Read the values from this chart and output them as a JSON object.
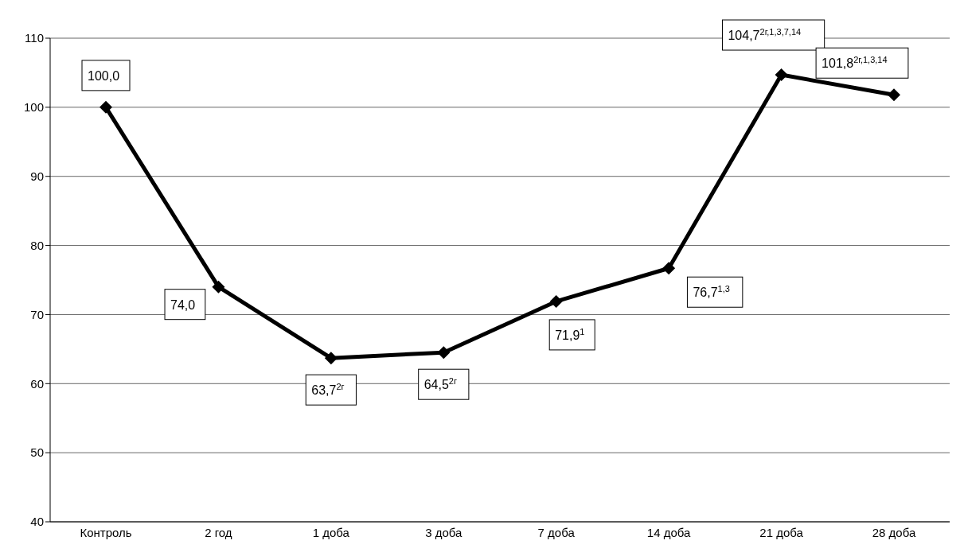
{
  "chart_data": {
    "type": "line",
    "categories": [
      "Контроль",
      "2 год",
      "1 доба",
      "3 доба",
      "7 доба",
      "14 доба",
      "21 доба",
      "28 доба"
    ],
    "series": [
      {
        "color": "#000000",
        "values": [
          100.0,
          74.0,
          63.7,
          64.5,
          71.9,
          76.7,
          104.7,
          101.8
        ],
        "value_labels": [
          "100,0",
          "74,0",
          "63,7$^{2г}$",
          "64,5$^{2г}$",
          "71,9$^{1}$",
          "76,7$^{1,3}$",
          "104,7$^{2г,1,3,7,14}$",
          "101,8$^{2г,1,3,14}$"
        ]
      }
    ],
    "ylim": [
      40,
      110
    ],
    "yticks": [
      40,
      50,
      60,
      70,
      80,
      90,
      100,
      110
    ],
    "grid": "y",
    "marker": "diamond",
    "line_style": "solid"
  }
}
